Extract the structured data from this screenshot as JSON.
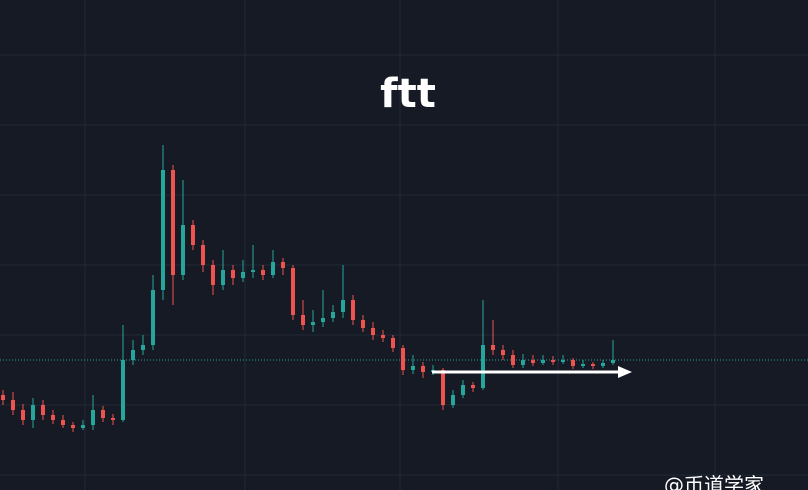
{
  "chart_data": {
    "type": "candlestick",
    "title": "ftt",
    "watermark": "@币道学家",
    "ylim": [
      0,
      490
    ],
    "up_color": "#26a69a",
    "down_color": "#ef5350",
    "last_price_line": true,
    "open": [
      95,
      90,
      80,
      70,
      85,
      75,
      70,
      65,
      62,
      65,
      80,
      72,
      70,
      130,
      140,
      145,
      200,
      320,
      215,
      265,
      245,
      225,
      205,
      220,
      212,
      218,
      220,
      215,
      228,
      222,
      175,
      165,
      168,
      172,
      178,
      190,
      170,
      162,
      155,
      152,
      142,
      120,
      124,
      118,
      120,
      85,
      95,
      105,
      102,
      145,
      140,
      135,
      125,
      130,
      127,
      130,
      128,
      130,
      124,
      126,
      124,
      127
    ],
    "high": [
      100,
      98,
      86,
      92,
      90,
      80,
      75,
      68,
      70,
      95,
      84,
      76,
      165,
      150,
      155,
      215,
      345,
      325,
      310,
      270,
      250,
      230,
      240,
      225,
      230,
      245,
      225,
      240,
      232,
      225,
      190,
      180,
      200,
      185,
      225,
      195,
      175,
      168,
      160,
      155,
      145,
      135,
      128,
      125,
      122,
      100,
      110,
      108,
      190,
      170,
      145,
      140,
      136,
      135,
      135,
      134,
      135,
      132,
      130,
      128,
      130,
      150
    ],
    "low": [
      85,
      75,
      65,
      62,
      70,
      66,
      62,
      58,
      60,
      60,
      68,
      65,
      68,
      125,
      135,
      140,
      190,
      185,
      210,
      240,
      218,
      195,
      200,
      205,
      208,
      212,
      210,
      212,
      215,
      170,
      160,
      158,
      163,
      168,
      172,
      165,
      158,
      150,
      148,
      138,
      115,
      116,
      112,
      115,
      80,
      82,
      92,
      98,
      100,
      135,
      130,
      122,
      122,
      124,
      125,
      125,
      126,
      121,
      122,
      121,
      122,
      125
    ],
    "close": [
      90,
      80,
      70,
      85,
      75,
      70,
      65,
      62,
      65,
      80,
      72,
      70,
      130,
      140,
      145,
      200,
      320,
      215,
      265,
      245,
      225,
      205,
      220,
      212,
      218,
      220,
      215,
      228,
      222,
      175,
      165,
      168,
      172,
      178,
      190,
      170,
      162,
      155,
      152,
      142,
      120,
      124,
      118,
      120,
      85,
      95,
      105,
      102,
      145,
      140,
      135,
      125,
      130,
      127,
      130,
      128,
      130,
      124,
      126,
      124,
      127,
      130
    ]
  }
}
